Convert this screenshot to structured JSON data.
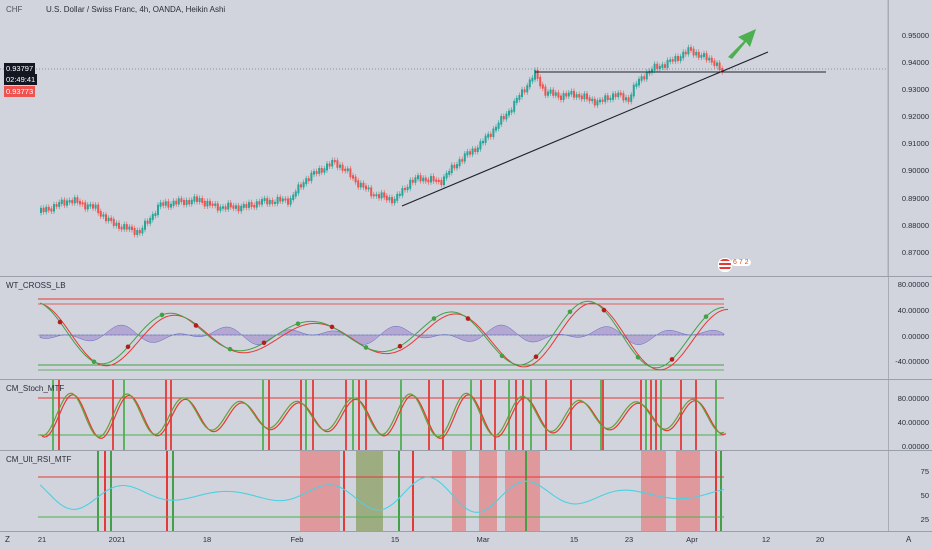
{
  "header": {
    "symbol_short": "CHF",
    "title": "U.S. Dollar / Swiss Franc, 4h, OANDA, Heikin Ashi"
  },
  "price_tags": {
    "last": "0.93797",
    "countdown": "02:49:41",
    "bid": "0.93773"
  },
  "colors": {
    "up": "#26a69a",
    "down": "#ef5350",
    "background": "#d1d4dc",
    "trendline": "#1e222d",
    "arrow": "#4caf50"
  },
  "price_axis": [
    "0.95000",
    "0.94000",
    "0.93000",
    "0.92000",
    "0.91000",
    "0.90000",
    "0.89000",
    "0.88000",
    "0.87000"
  ],
  "panes": {
    "wt": {
      "label": "WT_CROSS_LB",
      "ticks": [
        "80.00000",
        "40.00000",
        "0.00000",
        "-40.00000"
      ]
    },
    "stoch": {
      "label": "CM_Stoch_MTF",
      "ticks": [
        "80.00000",
        "40.00000",
        "0.00000"
      ]
    },
    "rsi": {
      "label": "CM_Ult_RSI_MTF",
      "ticks": [
        "75",
        "50",
        "25"
      ]
    }
  },
  "time_axis": [
    "21",
    "2021",
    "18",
    "Feb",
    "15",
    "Mar",
    "15",
    "23",
    "Apr",
    "12",
    "20"
  ],
  "corner": {
    "left": "Z",
    "right": "A"
  },
  "event_badge": "6 7 2"
}
